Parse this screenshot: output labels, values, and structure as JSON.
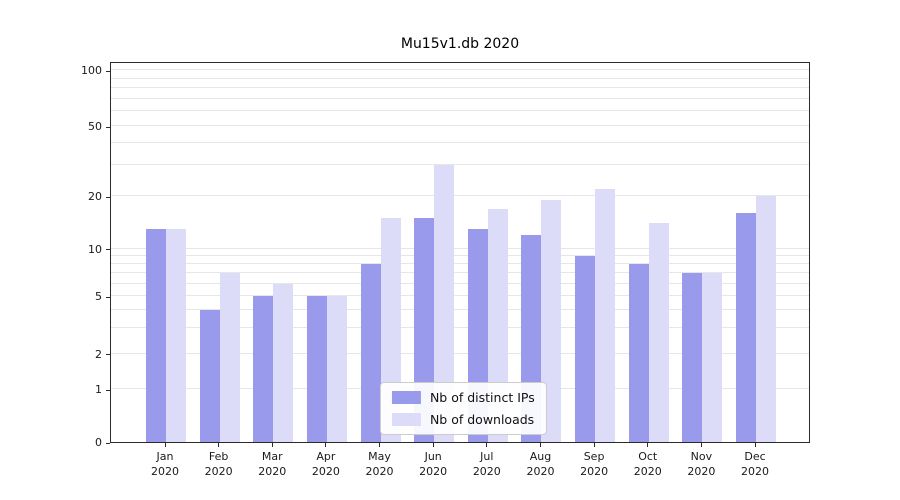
{
  "chart_data": {
    "type": "bar",
    "title": "Mu15v1.db 2020",
    "scale": "symlog",
    "grid": true,
    "legend_position": "lower center",
    "year_label": "2020",
    "categories": [
      "Jan",
      "Feb",
      "Mar",
      "Apr",
      "May",
      "Jun",
      "Jul",
      "Aug",
      "Sep",
      "Oct",
      "Nov",
      "Dec"
    ],
    "series": [
      {
        "name": "Nb of distinct IPs",
        "color": "#9a9aec",
        "values": [
          13,
          4,
          5,
          5,
          8,
          15,
          13,
          12,
          9,
          8,
          7,
          16
        ]
      },
      {
        "name": "Nb of downloads",
        "color": "#dcdcf9",
        "values": [
          13,
          7,
          6,
          5,
          15,
          30,
          17,
          19,
          22,
          14,
          7,
          20
        ]
      }
    ],
    "yticks": [
      0,
      1,
      2,
      5,
      10,
      20,
      50,
      100
    ],
    "minor_grid_values": [
      3,
      4,
      6,
      7,
      8,
      9,
      30,
      40,
      60,
      70,
      80,
      90
    ],
    "ylim": [
      0,
      110
    ]
  }
}
